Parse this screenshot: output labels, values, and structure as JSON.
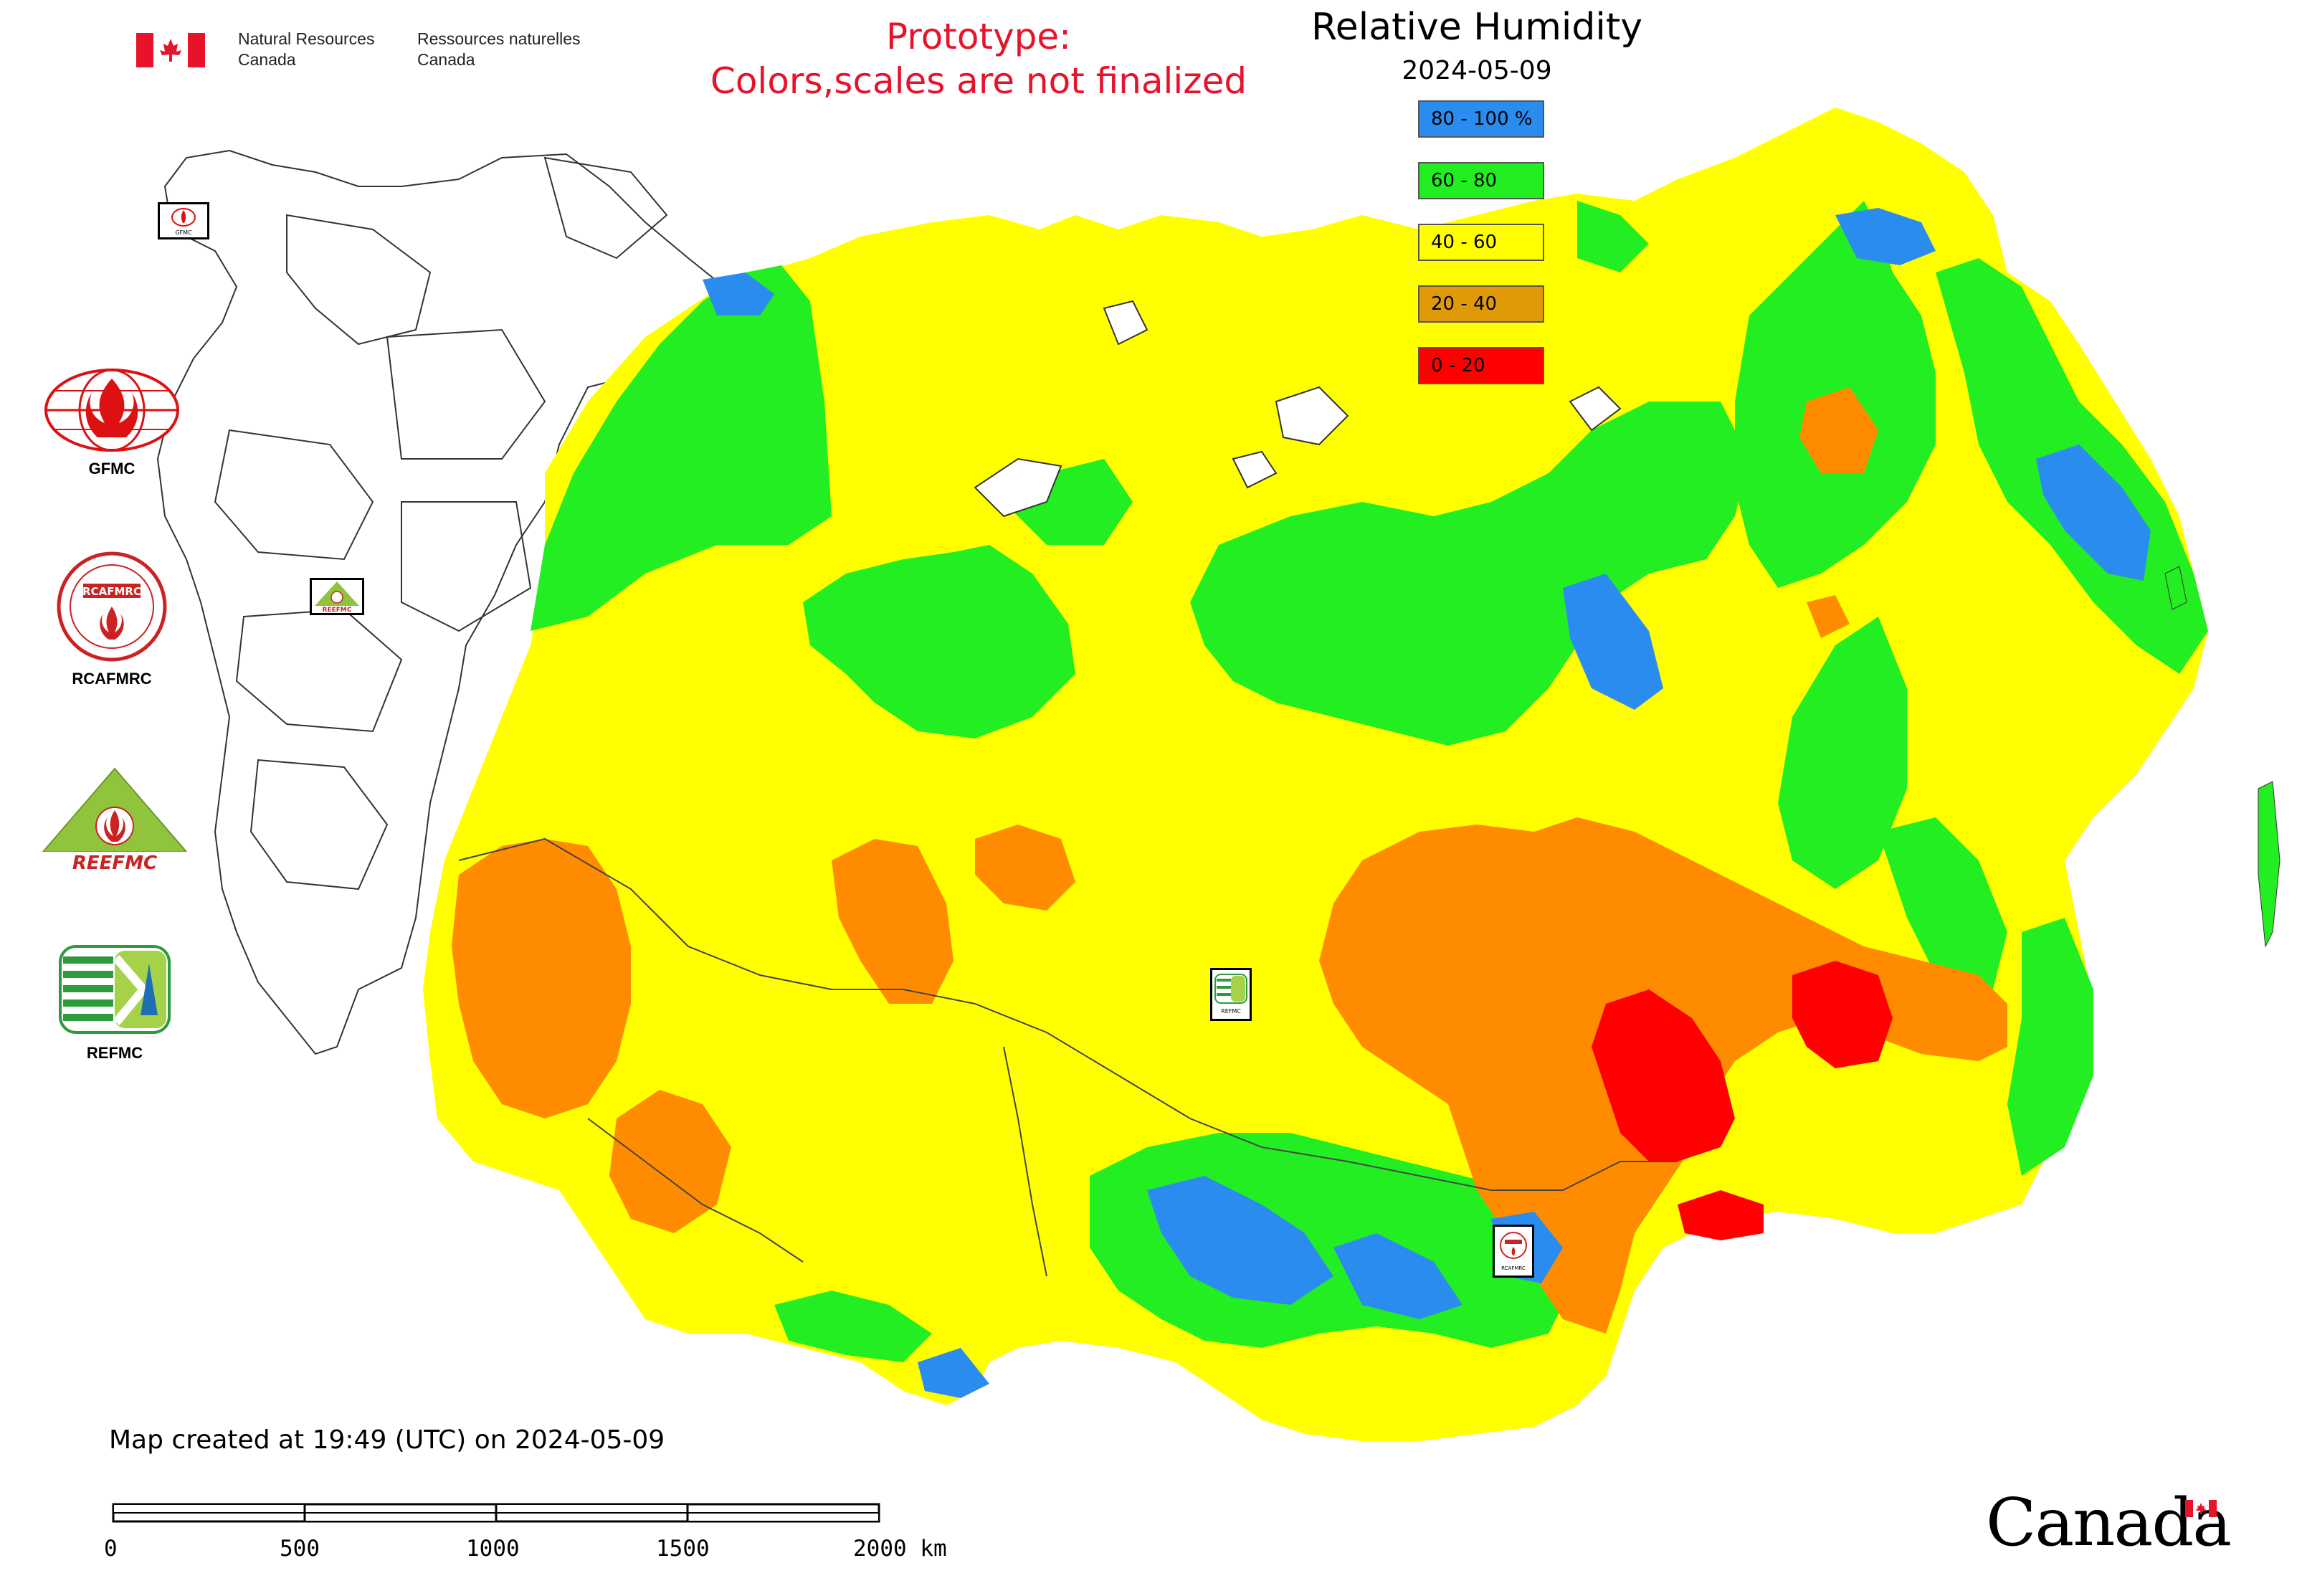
{
  "header": {
    "agency_en": "Natural Resources\nCanada",
    "agency_fr": "Ressources naturelles\nCanada",
    "flag_icon": "canada-flag-icon",
    "flag_color": "#e8132a"
  },
  "prototype_notice": {
    "line1": "Prototype:",
    "line2": "Colors,scales are not finalized",
    "color": "#e8132a"
  },
  "title": "Relative Humidity",
  "date": "2024-05-09",
  "legend": [
    {
      "label": "80 - 100 %",
      "color": "#2b8cf0"
    },
    {
      "label": "60 - 80",
      "color": "#22ee22"
    },
    {
      "label": "40 - 60",
      "color": "#ffff00"
    },
    {
      "label": "20 - 40",
      "color": "#e09a08"
    },
    {
      "label": "0 - 20",
      "color": "#ff0000"
    }
  ],
  "map_colors": {
    "rh_80_100": "#2b8cf0",
    "rh_60_80": "#22ee22",
    "rh_40_60": "#ffff00",
    "rh_20_40": "#ff8c00",
    "rh_0_20": "#ff0000"
  },
  "logos": {
    "gfmc": "GFMC",
    "rcafmrc": "RCAFMRC",
    "reefmc": "REEFMC",
    "refmc": "REFMC",
    "rcafmrc_emblem": "RCAFMRC",
    "reefmc_emblem": "REEFMC",
    "refmc_emblem": "REFMC",
    "gfmc_emblem": "GFMC"
  },
  "footer": {
    "created": "Map created at 19:49 (UTC) on 2024-05-09",
    "scale_labels": [
      "0",
      "500",
      "1000",
      "1500",
      "2000 km"
    ],
    "wordmark": "Canada"
  }
}
